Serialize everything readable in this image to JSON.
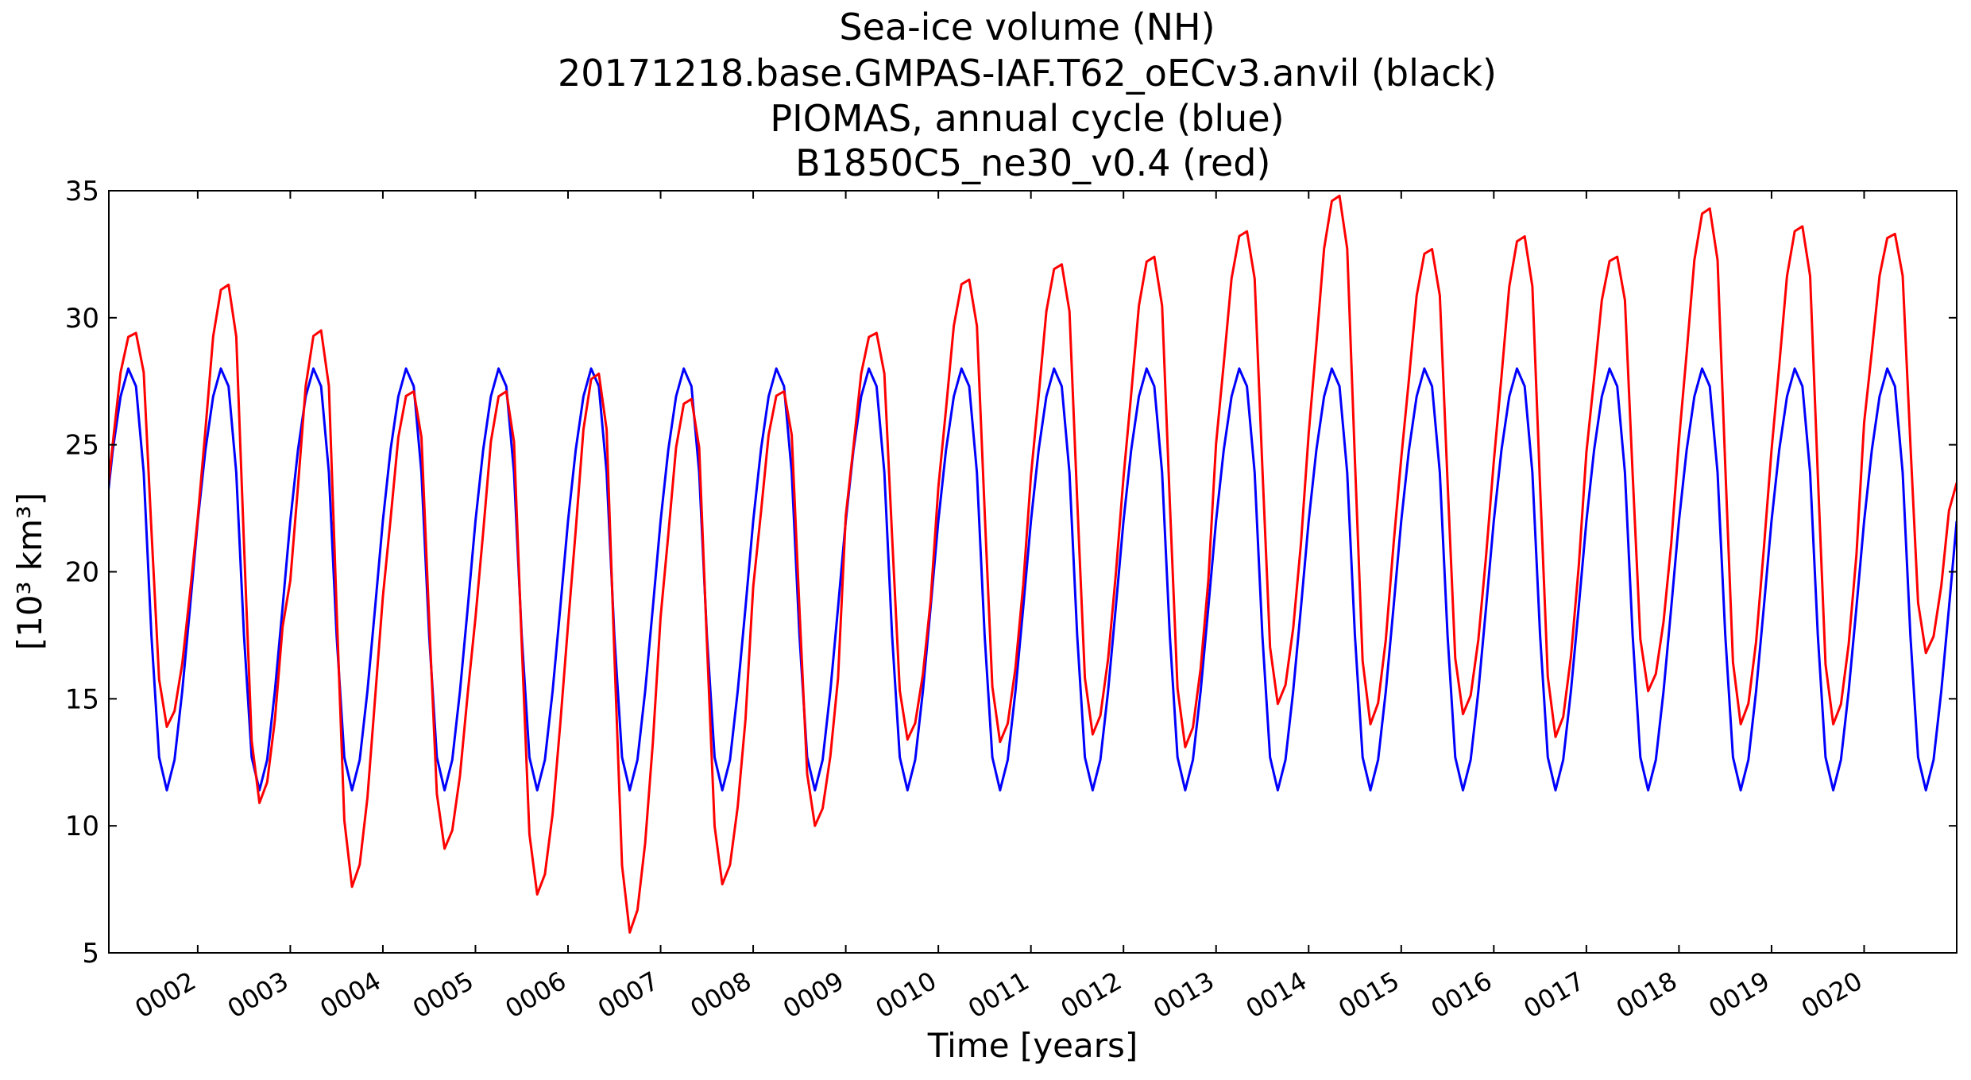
{
  "title_lines": [
    "Sea-ice volume (NH)",
    "20171218.base.GMPAS-IAF.T62_oECv3.anvil (black)",
    "PIOMAS, annual cycle (blue)",
    " B1850C5_ne30_v0.4 (red)"
  ],
  "colors": {
    "piomas": "#0000ff",
    "b1850": "#ff0000",
    "axes": "#000000"
  },
  "chart_data": {
    "type": "line",
    "title": "Sea-ice volume (NH)\n20171218.base.GMPAS-IAF.T62_oECv3.anvil (black)\nPIOMAS, annual cycle (blue)\n B1850C5_ne30_v0.4 (red)",
    "xlabel": "Time [years]",
    "ylabel": "[10³ km³]",
    "xlim": [
      1.04,
      21.0
    ],
    "ylim": [
      5,
      35
    ],
    "yticks": [
      5,
      10,
      15,
      20,
      25,
      30,
      35
    ],
    "xticks": [
      2,
      3,
      4,
      5,
      6,
      7,
      8,
      9,
      10,
      11,
      12,
      13,
      14,
      15,
      16,
      17,
      18,
      19,
      20
    ],
    "xtick_labels": [
      "0002",
      "0003",
      "0004",
      "0005",
      "0006",
      "0007",
      "0008",
      "0009",
      "0010",
      "0011",
      "0012",
      "0013",
      "0014",
      "0015",
      "0016",
      "0017",
      "0018",
      "0019",
      "0020"
    ],
    "grid": false,
    "series": [
      {
        "name": "PIOMAS, annual cycle (blue)",
        "color": "#0000ff",
        "kind": "annual_cycle",
        "monthly_values": [
          22.0,
          24.8,
          26.9,
          28.0,
          27.3,
          23.9,
          17.5,
          12.7,
          11.4,
          12.6,
          15.3,
          18.6
        ],
        "start_year": 1,
        "end_year": 21
      },
      {
        "name": "B1850C5_ne30_v0.4 (red)",
        "color": "#ff0000",
        "kind": "yearly_extrema",
        "years": [
          1,
          2,
          3,
          4,
          5,
          6,
          7,
          8,
          9,
          10,
          11,
          12,
          13,
          14,
          15,
          16,
          17,
          18,
          19,
          20
        ],
        "max_values": [
          29.4,
          31.3,
          29.5,
          27.1,
          27.1,
          27.8,
          26.8,
          27.1,
          29.4,
          31.5,
          32.1,
          32.4,
          33.4,
          34.8,
          32.7,
          33.2,
          32.4,
          34.3,
          33.6,
          33.3
        ],
        "min_values": [
          13.9,
          10.9,
          7.6,
          9.1,
          7.3,
          5.8,
          7.7,
          10.0,
          13.4,
          13.3,
          13.6,
          13.1,
          14.8,
          14.0,
          14.4,
          13.5,
          15.3,
          14.0,
          14.0,
          16.8
        ],
        "end_value": 23.5
      }
    ]
  }
}
